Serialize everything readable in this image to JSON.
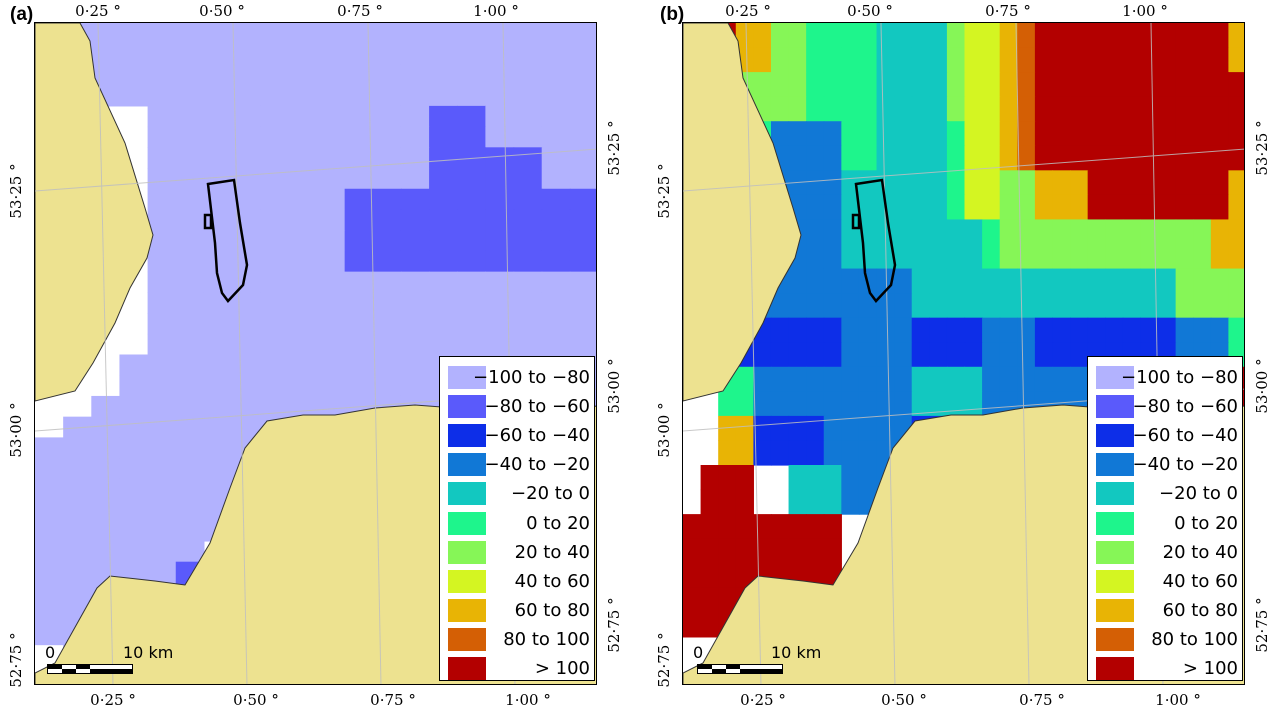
{
  "panels": [
    {
      "label": "(a)",
      "grid": [
        "xAAAAAAAAAAAAAAAAAAA",
        "xAAAAAAAAAAAAAAAAAAA",
        "xAAAAAAAAAAAAAAAAAAA",
        "xAAAAAAAAAAAAAAAAAAA",
        "xxxxAAAAAAAAAABBAAAA",
        "xxxxAAAAAAAAAABBAAAA",
        "xxxxAAAAAAAAAABBBBAA",
        "xxxxAAAAAAAAAABBBBAA",
        "xxxxAAAAAAABBBBBBBBB",
        "xxxxAAAAAAABBBBBBBBB",
        "xxxxAAAAAAABBBBBBBBB",
        "xxxxAAAAAAABBBBBBBBB",
        "xxxxAAAAAAAAAAAAAAAA",
        "xxxxAAAAAAAAAAAAAAAA",
        "xxxxAAAAAAAAAAAAAAAA",
        "xxxxAAAAAAAAAAAAAAAA",
        "xxxAAAAAAAAAAAAAAAAA",
        "xxxAAAAAAAAAAAAAAAAA",
        "xxAAAAAAAAAAAAAAAAAA",
        "xAAAAAAAAAAAAAAAAAAA",
        "AAAAAAAAAAAAAAAAAAAA",
        "AAAAAAAAAAAAAAAAAAAA",
        "AAAAAAAAAAAAAAAAAAAA",
        "AAAAAAABBxxxxxxxxxxx",
        "AAAAAAABBxxxxxxxxxxx",
        "AAAAAAxxxxxxxxxxxxxx",
        "AAAAABBxxxxxxxxxxxxx",
        "AAAAABBxxxxxxxxxxxxx",
        "AAABBBBxxxxxxxxxxxxx",
        "AAABBBBxxxxxxxxxxxxx",
        "xAABBAAxxxxxxxxxxxxx",
        "xAABBAAxxxxxxxxxxxxx"
      ]
    },
    {
      "label": "(b)",
      "grid": [
        "xKKIIGGFFFFEEEEGHHIJKKKKKKKKKKKI",
        "xKKIIGGFFFFEEEEGHHIJKKKKKKKKKKKI",
        "xKKGGGGFFFFEEEEGHHIJKKKKKKKKKKKK",
        "xKKGGGGFFFFEEEEGHHIJKKKKKKKKKKKK",
        "xKKFFDDDDFFEEEEFHHIJKKKKKKKKKKKK",
        "xxxFFDDDDFFEEEEFHHIJKKKKKKKKKKKK",
        "xxxFFDDDDEEEEEEFHHGGIIIKKKKKKKKI",
        "xxxFFDDDDEEEEEEFHHGGIIIKKKKKKKKI",
        "xxxDDDDDDEEEEEEEEFGGGGGGGGGGGGII",
        "xxxDDDDDDEEEEEEEEFGGGGGGGGGGGGII",
        "xxxDDDDDDDDDDEEEEEEEEEEEEEEEGGGG",
        "xxxDDDDDDDDDDEEEEEEEEEEEEEEEGGGG",
        "xxxCCCCCCDDDDCCCCDDDCCCCCCCCDDDF",
        "xxxCCCCCCDDDDCCCCDDDCCCCCCCCDDDF",
        "xxFFDDDDDDDDDEEEEDDDDDDCCCCCFFFK",
        "xxFFDDDDDDDDDEEEEDDDDDDCCCCCFFFK",
        "xxIICCCCDDDDDCCCCDDDCCCEEEEEKKKK",
        "xxIICCCCDDDDDCCCCDDDCCCEEEEEKKKK",
        "xKKKxxEEEDDDDxxxxxxxxxxxxxxxxxxx",
        "xKKKxxEEEDDDDxxxxxxxxxxxxxxxxxxx",
        "KKKKKKKKKxxxxxxxxxxxxxxxxxxxxxxx",
        "KKKKKKKKKxxxxxxxxxxxxxxxxxxxxxxx",
        "KKKKKKKKKxxxxxxxxxxxxxxxxxxxxxxx",
        "KKKKKKKKKxxxxxxxxxxxxxxxxxxxxxxx",
        "KKKKKKKKKxxxxxxxxxxxxxxxxxxxxxxx",
        "xxxKKKKKKxxxxxxxxxxxxxxxxxxxxxxx",
        "xxxKKKKKKxxxxxxxxxxxxxxxxxxxxxxx"
      ]
    }
  ],
  "colors": {
    "land": "#ede290",
    "sea_nodata": "#ffffff",
    "graticule": "#bfbfbf",
    "farm_outline": "#000000"
  },
  "legend": [
    {
      "code": "A",
      "label": "−100 to −80",
      "color": "#b2b2fe"
    },
    {
      "code": "B",
      "label": "−80 to −60",
      "color": "#5a5afb"
    },
    {
      "code": "C",
      "label": "−60 to −40",
      "color": "#0d2ee8"
    },
    {
      "code": "D",
      "label": "−40 to −20",
      "color": "#1178d6"
    },
    {
      "code": "E",
      "label": "−20 to 0",
      "color": "#12c8c0"
    },
    {
      "code": "F",
      "label": "0 to 20",
      "color": "#1ef58c"
    },
    {
      "code": "G",
      "label": "20 to 40",
      "color": "#86f657"
    },
    {
      "code": "H",
      "label": "40 to 60",
      "color": "#d4f522"
    },
    {
      "code": "I",
      "label": "60 to 80",
      "color": "#e8b405"
    },
    {
      "code": "J",
      "label": "80 to 100",
      "color": "#d45f05"
    },
    {
      "code": "K",
      "label": "> 100",
      "color": "#b30000"
    }
  ],
  "legend_panel_a": [
    "A",
    "B",
    "C",
    "D",
    "E",
    "F",
    "G",
    "H",
    "I",
    "J",
    "K"
  ],
  "ticks": {
    "lon_top": [
      "0·25 °",
      "0·50 °",
      "0·75 °",
      "1·00 °"
    ],
    "lon_bottom": [
      "0·25 °",
      "0·50 °",
      "0·75 °",
      "1·00 °"
    ],
    "lat_left": [
      "53·25 °",
      "53·00 °",
      "52·75 °"
    ],
    "lat_right": [
      "53·25 °",
      "53·00 °",
      "52·75 °"
    ]
  },
  "scale": {
    "zero": "0",
    "distance": "10 km"
  }
}
